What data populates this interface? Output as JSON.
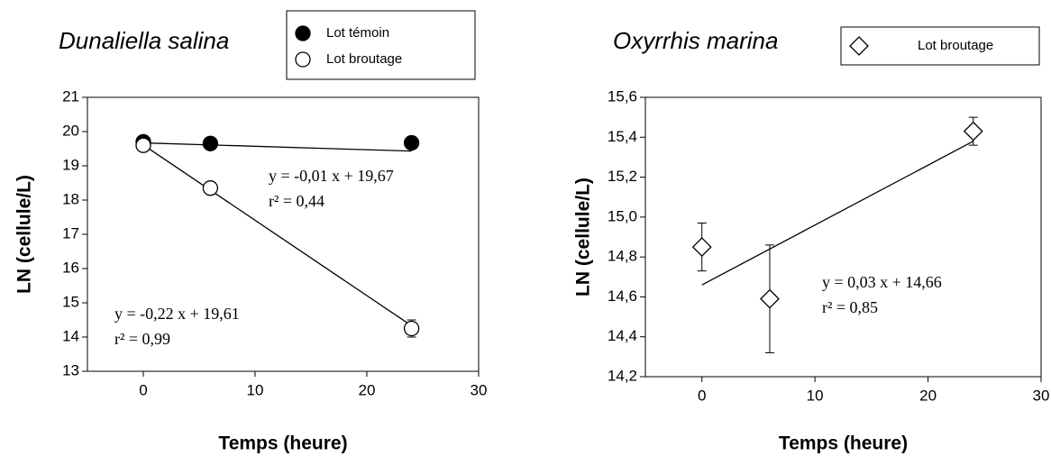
{
  "chart_data": [
    {
      "type": "scatter",
      "title": "Dunaliella salina",
      "xlabel": "Temps (heure)",
      "ylabel": "LN (cellule/L)",
      "xlim": [
        -5,
        30
      ],
      "ylim": [
        13,
        21
      ],
      "xticks": [
        0,
        10,
        20,
        30
      ],
      "yticks": [
        13,
        14,
        15,
        16,
        17,
        18,
        19,
        20,
        21
      ],
      "series": [
        {
          "name": "Lot témoin",
          "marker": "circle",
          "fill": "#000000",
          "color": "#000000",
          "x": [
            0,
            6,
            24
          ],
          "values": [
            19.7,
            19.65,
            19.67
          ],
          "errors": [
            null,
            null,
            null
          ]
        },
        {
          "name": "Lot broutage",
          "marker": "circle",
          "fill": "#ffffff",
          "color": "#000000",
          "x": [
            0,
            6,
            24
          ],
          "values": [
            19.6,
            18.35,
            14.25
          ],
          "errors": [
            null,
            null,
            0.25
          ]
        }
      ],
      "regression": [
        {
          "slope": -0.01,
          "intercept": 19.67,
          "xrange": [
            0,
            24
          ],
          "label": [
            "y = -0,01 x + 19,67",
            "r² = 0,44"
          ]
        },
        {
          "slope": -0.22,
          "intercept": 19.61,
          "xrange": [
            0,
            24
          ],
          "label": [
            "y = -0,22 x + 19,61",
            "r² = 0,99"
          ]
        }
      ]
    },
    {
      "type": "scatter",
      "title": "Oxyrrhis marina",
      "xlabel": "Temps (heure)",
      "ylabel": "LN (cellule/L)",
      "xlim": [
        -5,
        30
      ],
      "ylim": [
        14.2,
        15.6
      ],
      "xticks": [
        0,
        10,
        20,
        30
      ],
      "yticks": [
        {
          "value": 14.2,
          "label": "14,2"
        },
        {
          "value": 14.4,
          "label": "14,4"
        },
        {
          "value": 14.6,
          "label": "14,6"
        },
        {
          "value": 14.8,
          "label": "14,8"
        },
        {
          "value": 15.0,
          "label": "15,0"
        },
        {
          "value": 15.2,
          "label": "15,2"
        },
        {
          "value": 15.4,
          "label": "15,4"
        },
        {
          "value": 15.6,
          "label": "15,6"
        }
      ],
      "series": [
        {
          "name": "Lot broutage",
          "marker": "diamond",
          "fill": "#ffffff",
          "color": "#000000",
          "x": [
            0,
            6,
            24
          ],
          "values": [
            14.85,
            14.59,
            15.43
          ],
          "errors": [
            0.12,
            0.27,
            0.07
          ]
        }
      ],
      "regression": [
        {
          "slope": 0.03,
          "intercept": 14.66,
          "xrange": [
            0,
            24
          ],
          "label": [
            "y = 0,03 x + 14,66",
            "r² = 0,85"
          ]
        }
      ]
    }
  ]
}
